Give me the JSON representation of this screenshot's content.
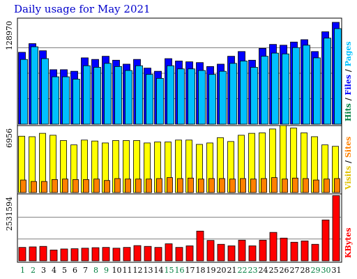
{
  "title": "Daily usage for May 2021",
  "chart_data": {
    "type": "bar",
    "title": "Daily usage for May 2021",
    "days": [
      "1",
      "2",
      "3",
      "4",
      "5",
      "6",
      "7",
      "8",
      "9",
      "10",
      "11",
      "12",
      "13",
      "14",
      "15",
      "16",
      "17",
      "18",
      "19",
      "20",
      "21",
      "22",
      "23",
      "24",
      "25",
      "26",
      "27",
      "28",
      "29",
      "30",
      "31"
    ],
    "weekend_days": [
      "1",
      "2",
      "8",
      "9",
      "15",
      "16",
      "22",
      "23",
      "29",
      "30"
    ],
    "panels": [
      {
        "id": "top",
        "max_label": "128970",
        "ylim": [
          0,
          128970
        ],
        "legend": [
          {
            "text": "Hits",
            "color": "#008040"
          },
          {
            "text": "Files",
            "color": "#0000ff"
          },
          {
            "text": "Pages",
            "color": "#00c0ff"
          }
        ],
        "series": [
          {
            "name": "Hits",
            "color": "#0000ff",
            "values": [
              91000,
              102000,
              93000,
              69000,
              69000,
              67000,
              84000,
              82000,
              86000,
              81000,
              76000,
              82000,
              71000,
              67000,
              83000,
              80000,
              79000,
              78000,
              73000,
              76000,
              86000,
              92000,
              81000,
              96000,
              101000,
              100000,
              104000,
              107000,
              92000,
              117000,
              130000
            ]
          },
          {
            "name": "Files",
            "color": "#00c0ff",
            "values": [
              82000,
              98000,
              83000,
              60000,
              60000,
              57000,
              74000,
              72000,
              77000,
              73000,
              68000,
              74000,
              63000,
              58000,
              74000,
              70000,
              70000,
              68000,
              63000,
              67000,
              77000,
              80000,
              72000,
              86000,
              90000,
              89000,
              97000,
              100000,
              84000,
              109000,
              121000
            ]
          }
        ]
      },
      {
        "id": "middle",
        "max_label": "6956",
        "ylim": [
          0,
          6956
        ],
        "legend": [
          {
            "text": "Visits",
            "color": "#e0c000"
          },
          {
            "text": "Sites",
            "color": "#ff8000"
          }
        ],
        "series": [
          {
            "name": "Visits",
            "color": "#ffff00",
            "values": [
              5850,
              5800,
              6150,
              5950,
              5400,
              4950,
              5450,
              5350,
              5150,
              5400,
              5400,
              5400,
              5150,
              5250,
              5250,
              5450,
              5450,
              5000,
              5150,
              5700,
              5300,
              5950,
              6150,
              6200,
              6600,
              7000,
              6700,
              6200,
              5800,
              4950,
              4800
            ]
          },
          {
            "name": "Sites",
            "color": "#ff8000",
            "values": [
              1300,
              1150,
              1150,
              1350,
              1400,
              1350,
              1350,
              1400,
              1250,
              1450,
              1400,
              1400,
              1400,
              1450,
              1550,
              1450,
              1500,
              1400,
              1450,
              1450,
              1400,
              1450,
              1400,
              1450,
              1550,
              1400,
              1500,
              1450,
              1300,
              1400,
              1450
            ]
          }
        ]
      },
      {
        "id": "bottom",
        "max_label": "2531594",
        "ylim": [
          0,
          2531594
        ],
        "legend": [
          {
            "text": "KBytes",
            "color": "#ff0000"
          }
        ],
        "series": [
          {
            "name": "KBytes",
            "color": "#ff0000",
            "values": [
              520000,
              540000,
              560000,
              420000,
              460000,
              470000,
              490000,
              510000,
              520000,
              490000,
              520000,
              590000,
              560000,
              520000,
              660000,
              520000,
              580000,
              1150000,
              790000,
              640000,
              580000,
              800000,
              580000,
              800000,
              1100000,
              880000,
              720000,
              770000,
              640000,
              1580000,
              2520000
            ]
          }
        ]
      }
    ]
  }
}
